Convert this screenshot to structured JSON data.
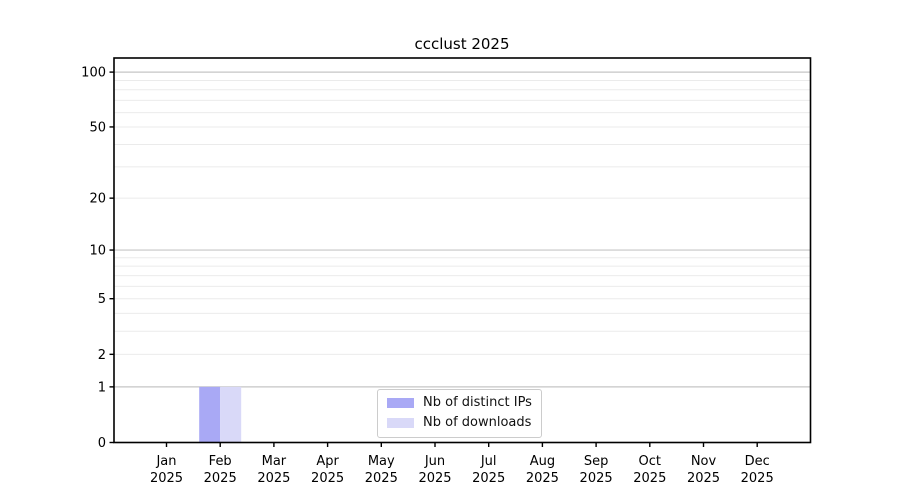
{
  "chart_data": {
    "type": "bar",
    "title": "ccclust 2025",
    "categories": [
      "Jan",
      "Feb",
      "Mar",
      "Apr",
      "May",
      "Jun",
      "Jul",
      "Aug",
      "Sep",
      "Oct",
      "Nov",
      "Dec"
    ],
    "year_label": "2025",
    "series": [
      {
        "name": "Nb of distinct IPs",
        "color": "#a9a9f5",
        "values": [
          0,
          1,
          0,
          0,
          0,
          0,
          0,
          0,
          0,
          0,
          0,
          0
        ]
      },
      {
        "name": "Nb of downloads",
        "color": "#d9d9f8",
        "values": [
          0,
          1,
          0,
          0,
          0,
          0,
          0,
          0,
          0,
          0,
          0,
          0
        ]
      }
    ],
    "xlabel": "",
    "ylabel": "",
    "y_axis": {
      "scale": "log1p",
      "tick_values": [
        0,
        1,
        2,
        5,
        10,
        20,
        50,
        100
      ],
      "major_gridlines": [
        1,
        10,
        100
      ],
      "minor_gridlines": [
        2,
        3,
        4,
        5,
        6,
        7,
        8,
        9,
        20,
        30,
        40,
        50,
        60,
        70,
        80,
        90
      ],
      "ylim": [
        0,
        117
      ]
    },
    "legend_position": "lower center",
    "grid": true,
    "colors": {
      "axis": "#000000",
      "tick_label": "#000000",
      "major_grid": "#c6c6c6",
      "minor_grid": "#ebebeb",
      "background": "#ffffff"
    }
  }
}
